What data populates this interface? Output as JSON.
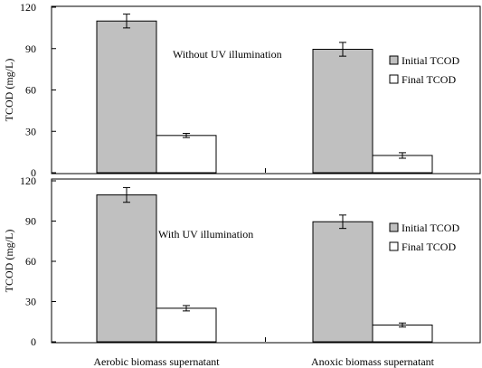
{
  "chart_data": [
    {
      "type": "bar",
      "title": "",
      "annotation": "Without UV illumination",
      "ylabel": "TCOD (mg/L)",
      "xlabel": "",
      "ylim": [
        0,
        120
      ],
      "yticks": [
        0,
        30,
        60,
        90,
        120
      ],
      "categories": [
        "Aerobic biomass supernatant",
        "Anoxic biomass supernatant"
      ],
      "series": [
        {
          "name": "Initial TCOD",
          "color": "#c0c0c0",
          "values": [
            110,
            89.5
          ],
          "errors": [
            5,
            5
          ]
        },
        {
          "name": "Final TCOD",
          "color": "#ffffff",
          "values": [
            27,
            12.5
          ],
          "errors": [
            1.5,
            2
          ]
        }
      ],
      "legend_position": "right",
      "grid": false
    },
    {
      "type": "bar",
      "title": "",
      "annotation": "With UV illumination",
      "ylabel": "TCOD (mg/L)",
      "xlabel": "",
      "ylim": [
        0,
        120
      ],
      "yticks": [
        0,
        30,
        60,
        90,
        120
      ],
      "categories": [
        "Aerobic biomass supernatant",
        "Anoxic biomass supernatant"
      ],
      "series": [
        {
          "name": "Initial TCOD",
          "color": "#c0c0c0",
          "values": [
            109.5,
            89.5
          ],
          "errors": [
            5.5,
            5
          ]
        },
        {
          "name": "Final TCOD",
          "color": "#ffffff",
          "values": [
            25,
            12.5
          ],
          "errors": [
            2,
            1.5
          ]
        }
      ],
      "legend_position": "right",
      "grid": false
    }
  ]
}
